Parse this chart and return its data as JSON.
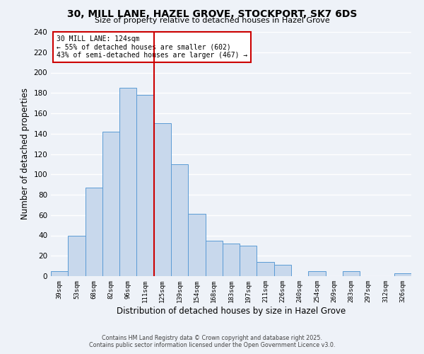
{
  "title1": "30, MILL LANE, HAZEL GROVE, STOCKPORT, SK7 6DS",
  "title2": "Size of property relative to detached houses in Hazel Grove",
  "xlabel": "Distribution of detached houses by size in Hazel Grove",
  "ylabel": "Number of detached properties",
  "categories": [
    "39sqm",
    "53sqm",
    "68sqm",
    "82sqm",
    "96sqm",
    "111sqm",
    "125sqm",
    "139sqm",
    "154sqm",
    "168sqm",
    "183sqm",
    "197sqm",
    "211sqm",
    "226sqm",
    "240sqm",
    "254sqm",
    "269sqm",
    "283sqm",
    "297sqm",
    "312sqm",
    "326sqm"
  ],
  "values": [
    5,
    40,
    87,
    142,
    185,
    178,
    150,
    110,
    61,
    35,
    32,
    30,
    14,
    11,
    0,
    5,
    0,
    5,
    0,
    0,
    3
  ],
  "bar_color": "#c8d8ec",
  "bar_edge_color": "#5b9bd5",
  "vline_x": 5.5,
  "vline_color": "#cc0000",
  "annotation_title": "30 MILL LANE: 124sqm",
  "annotation_line1": "← 55% of detached houses are smaller (602)",
  "annotation_line2": "43% of semi-detached houses are larger (467) →",
  "annotation_box_color": "#ffffff",
  "annotation_box_edge": "#cc0000",
  "ylim": [
    0,
    240
  ],
  "yticks": [
    0,
    20,
    40,
    60,
    80,
    100,
    120,
    140,
    160,
    180,
    200,
    220,
    240
  ],
  "footer1": "Contains HM Land Registry data © Crown copyright and database right 2025.",
  "footer2": "Contains public sector information licensed under the Open Government Licence v3.0.",
  "bg_color": "#eef2f8",
  "grid_color": "#ffffff"
}
